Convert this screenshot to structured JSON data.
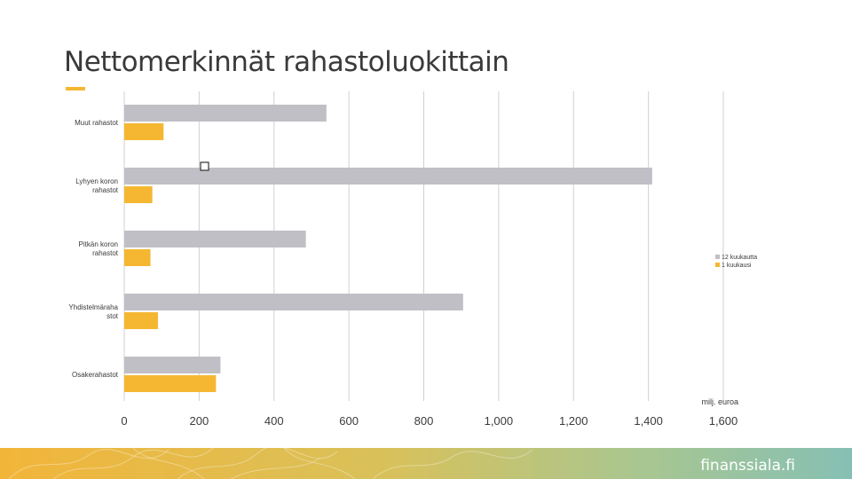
{
  "title": "Nettomerkinnät rahastoluokittain",
  "brand": "finanssiala.fi",
  "colors": {
    "series_12m": "#bfbfc5",
    "series_1m": "#f5b731",
    "accent": "#f5b731",
    "text": "#3a3a3a",
    "gridline": "#d0d0d0"
  },
  "chart_data": {
    "type": "bar",
    "orientation": "horizontal",
    "categories": [
      [
        "Muut rahastot"
      ],
      [
        "Lyhyen koron",
        "rahastot"
      ],
      [
        "Pitkän koron",
        "rahastot"
      ],
      [
        "Yhdistelmäraha",
        "stot"
      ],
      [
        "Osakerahastot"
      ]
    ],
    "series": [
      {
        "name": "12 kuukautta",
        "values": [
          540,
          1410,
          485,
          905,
          257
        ]
      },
      {
        "name": "1 kuukausi",
        "values": [
          105,
          75,
          70,
          90,
          245
        ]
      }
    ],
    "xticks": [
      "0",
      "200",
      "400",
      "600",
      "800",
      "1,000",
      "1,200",
      "1,400",
      "1,600"
    ],
    "xlim": [
      0,
      1600
    ],
    "xlabel": "milj. euroa",
    "grid": true,
    "legend_position": "right"
  }
}
